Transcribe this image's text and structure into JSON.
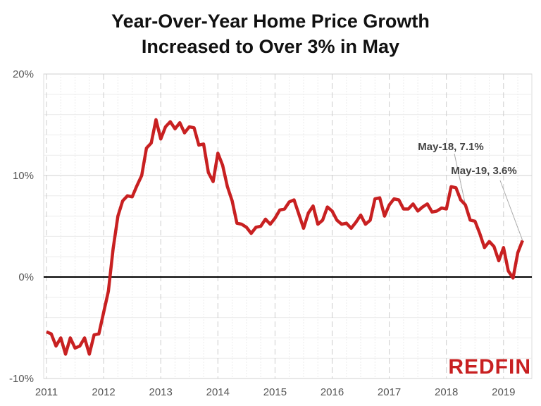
{
  "chart_data": {
    "type": "line",
    "title": "Year-Over-Year Home Price Growth Increased to Over 3% in May",
    "title_lines": [
      "Year-Over-Year Home Price Growth",
      "Increased to Over 3% in May"
    ],
    "xlabel": "",
    "ylabel": "",
    "ylim": [
      -10,
      20
    ],
    "yticks": [
      "20%",
      "10%",
      "0%",
      "-10%"
    ],
    "ytick_values": [
      20,
      10,
      0,
      -10
    ],
    "xticks": [
      "2011",
      "2012",
      "2013",
      "2014",
      "2015",
      "2016",
      "2017",
      "2018",
      "2019"
    ],
    "grid": true,
    "start": "2011-01",
    "frequency": "monthly",
    "color": "#c82021",
    "series": [
      {
        "values": [
          -5.4,
          -5.6,
          -6.8,
          -6.0,
          -7.6,
          -6.0,
          -7.0,
          -6.8,
          -6.0,
          -7.6,
          -5.7,
          -5.6,
          -3.5,
          -1.4,
          2.8,
          6.0,
          7.5,
          8.0,
          7.9,
          9.0,
          10.0,
          12.7,
          13.2,
          15.5,
          13.6,
          14.8,
          15.3,
          14.6,
          15.2,
          14.2,
          14.8,
          14.7,
          13.0,
          13.1,
          10.3,
          9.4,
          12.2,
          11.0,
          8.9,
          7.5,
          5.3,
          5.2,
          4.9,
          4.3,
          4.9,
          5.0,
          5.7,
          5.2,
          5.8,
          6.6,
          6.7,
          7.4,
          7.6,
          6.2,
          4.8,
          6.3,
          7.0,
          5.2,
          5.6,
          6.9,
          6.5,
          5.6,
          5.2,
          5.3,
          4.8,
          5.4,
          6.1,
          5.2,
          5.6,
          7.7,
          7.8,
          6.0,
          7.1,
          7.7,
          7.6,
          6.7,
          6.7,
          7.2,
          6.5,
          6.9,
          7.2,
          6.4,
          6.5,
          6.8,
          6.7,
          8.9,
          8.8,
          7.6,
          7.1,
          5.6,
          5.5,
          4.3,
          2.9,
          3.5,
          3.0,
          1.6,
          2.9,
          0.6,
          -0.1,
          2.4,
          3.6
        ]
      }
    ],
    "annotations": [
      {
        "label": "May-18, 7.1%",
        "month_index": 88,
        "value": 7.1
      },
      {
        "label": "May-19, 3.6%",
        "month_index": 100,
        "value": 3.6
      }
    ]
  },
  "logo": "REDFIN"
}
